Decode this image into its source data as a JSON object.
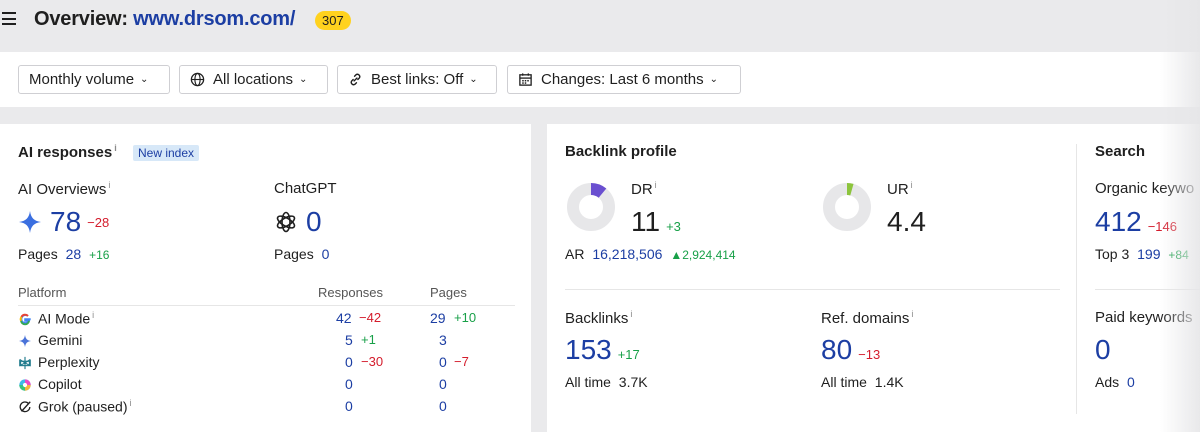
{
  "header": {
    "title_prefix": "Overview: ",
    "url": "www.drsom.com/",
    "count": "307"
  },
  "filters": {
    "volume": "Monthly volume",
    "locations": "All locations",
    "best_links": "Best links: Off",
    "changes": "Changes: Last 6 months"
  },
  "ai_responses": {
    "title": "AI responses",
    "info": "i",
    "badge": "New index",
    "overviews": {
      "label": "AI Overviews",
      "value": "78",
      "delta": "−28",
      "pages_label": "Pages",
      "pages_value": "28",
      "pages_delta": "+16"
    },
    "chatgpt": {
      "label": "ChatGPT",
      "value": "0",
      "pages_label": "Pages",
      "pages_value": "0"
    },
    "table": {
      "headers": [
        "Platform",
        "Responses",
        "Pages"
      ],
      "rows": [
        {
          "name": "AI Mode",
          "info": "i",
          "responses": "42",
          "responses_delta": "−42",
          "pages": "29",
          "pages_delta": "+10"
        },
        {
          "name": "Gemini",
          "info": "",
          "responses": "5",
          "responses_delta": "+1",
          "pages": "3",
          "pages_delta": ""
        },
        {
          "name": "Perplexity",
          "info": "",
          "responses": "0",
          "responses_delta": "−30",
          "pages": "0",
          "pages_delta": "−7"
        },
        {
          "name": "Copilot",
          "info": "",
          "responses": "0",
          "responses_delta": "",
          "pages": "0",
          "pages_delta": ""
        },
        {
          "name": "Grok (paused)",
          "info": "i",
          "responses": "0",
          "responses_delta": "",
          "pages": "0",
          "pages_delta": ""
        }
      ]
    }
  },
  "backlink_profile": {
    "title": "Backlink profile",
    "dr": {
      "label": "DR",
      "value": "11",
      "delta": "+3",
      "gauge_fraction": 0.11
    },
    "ur": {
      "label": "UR",
      "value": "4.4",
      "gauge_fraction": 0.044
    },
    "ar": {
      "label": "AR",
      "value": "16,218,506",
      "delta": "2,924,414"
    },
    "backlinks": {
      "label": "Backlinks",
      "value": "153",
      "delta": "+17",
      "alltime_label": "All time",
      "alltime_value": "3.7K"
    },
    "ref_domains": {
      "label": "Ref. domains",
      "value": "80",
      "delta": "−13",
      "alltime_label": "All time",
      "alltime_value": "1.4K"
    }
  },
  "search": {
    "title": "Search",
    "organic": {
      "label": "Organic keywo",
      "value": "412",
      "delta": "−146",
      "top3_label": "Top 3",
      "top3_value": "199",
      "top3_delta": "+84"
    },
    "paid": {
      "label": "Paid keywords",
      "value": "0",
      "ads_label": "Ads",
      "ads_value": "0"
    }
  },
  "colors": {
    "accent_blue": "#1c3ea3",
    "positive": "#18a048",
    "negative": "#d41c2c",
    "badge_yellow": "#ffd21e",
    "dr_gauge": "#6a4fd0",
    "ur_gauge": "#8cc43c"
  }
}
